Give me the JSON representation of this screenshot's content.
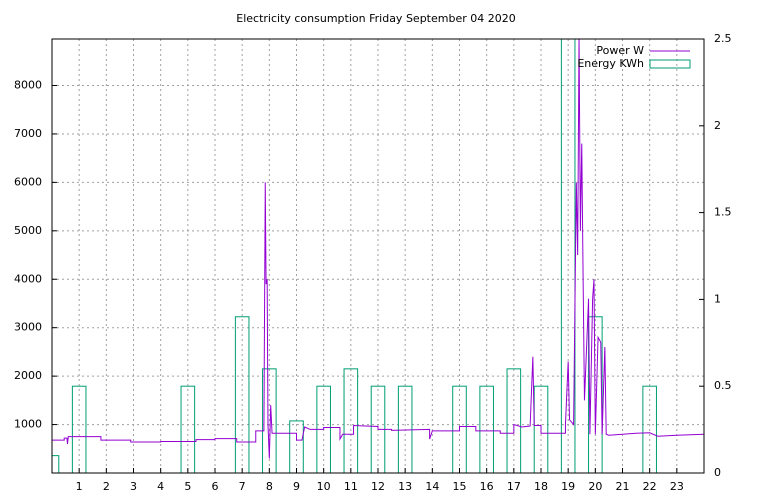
{
  "chart_data": {
    "type": "line",
    "title": "Electricity consumption Friday September 04 2020",
    "xlim": [
      0,
      24
    ],
    "xticks": [
      1,
      2,
      3,
      4,
      5,
      6,
      7,
      8,
      9,
      10,
      11,
      12,
      13,
      14,
      15,
      16,
      17,
      18,
      19,
      20,
      21,
      22,
      23
    ],
    "ylim": [
      0,
      8960
    ],
    "yticks": [
      1000,
      2000,
      3000,
      4000,
      5000,
      6000,
      7000,
      8000
    ],
    "y2lim": [
      0,
      2.5
    ],
    "y2ticks": [
      0,
      0.5,
      1,
      1.5,
      2,
      2.5
    ],
    "grid": true,
    "legend": "top-right",
    "series": [
      {
        "name": "Power W",
        "type": "line",
        "color": "#9400d3",
        "x": [
          0,
          0.45,
          0.45,
          0.55,
          0.57,
          0.6,
          1.8,
          1.8,
          2.9,
          2.9,
          4,
          4,
          5.3,
          5.3,
          6,
          6,
          6.8,
          6.8,
          7.5,
          7.5,
          7.8,
          7.85,
          7.88,
          7.92,
          7.95,
          8.0,
          8.05,
          8.1,
          9,
          9,
          9.2,
          9.3,
          9.5,
          10,
          10,
          10.6,
          10.6,
          10.7,
          11.1,
          11.1,
          12,
          12,
          12.5,
          12.5,
          13.9,
          13.9,
          14,
          15,
          15,
          15.6,
          15.6,
          16.5,
          16.5,
          17,
          17,
          17.3,
          17.6,
          17.7,
          17.75,
          18,
          18,
          18.9,
          18.9,
          19,
          19.05,
          19.2,
          19.3,
          19.35,
          19.4,
          19.45,
          19.5,
          19.55,
          19.6,
          19.75,
          19.8,
          19.9,
          19.95,
          20,
          20.1,
          20.2,
          20.25,
          20.35,
          20.4,
          20.5,
          21,
          21.5,
          22,
          22.3,
          23,
          24
        ],
        "values": [
          680,
          680,
          720,
          720,
          600,
          750,
          750,
          680,
          680,
          640,
          640,
          650,
          650,
          690,
          690,
          710,
          710,
          640,
          640,
          870,
          870,
          6000,
          3900,
          4000,
          1000,
          300,
          1400,
          820,
          820,
          680,
          680,
          950,
          900,
          900,
          940,
          940,
          700,
          800,
          800,
          980,
          960,
          900,
          900,
          880,
          900,
          700,
          870,
          870,
          960,
          960,
          870,
          870,
          820,
          820,
          1000,
          950,
          970,
          2400,
          980,
          980,
          820,
          820,
          1000,
          2300,
          1100,
          1000,
          6000,
          4500,
          9000,
          5000,
          6800,
          4000,
          1500,
          3600,
          800,
          3600,
          4000,
          800,
          2800,
          2700,
          800,
          2600,
          800,
          780,
          800,
          820,
          830,
          760,
          780,
          800
        ]
      },
      {
        "name": "Energy KWh",
        "type": "bar",
        "axis": "y2",
        "color": "#009e73",
        "x": [
          0,
          1,
          5,
          7,
          8,
          9,
          10,
          11,
          12,
          13,
          15,
          16,
          17,
          18,
          19,
          20,
          22
        ],
        "values": [
          0.1,
          0.5,
          0.5,
          0.9,
          0.6,
          0.3,
          0.5,
          0.6,
          0.5,
          0.5,
          0.5,
          0.5,
          0.6,
          0.5,
          2.6,
          0.9,
          0.5
        ]
      }
    ]
  }
}
